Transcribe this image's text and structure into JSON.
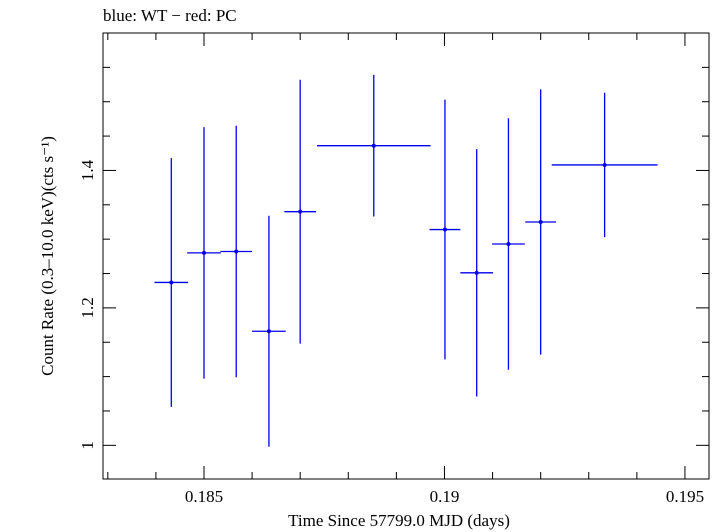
{
  "chart_data": {
    "type": "scatter",
    "title": "blue: WT − red: PC",
    "xlabel": "Time Since 57799.0 MJD (days)",
    "ylabel": "Count Rate (0.3–10.0 keV)(cts s⁻¹)",
    "xlim": [
      0.1829,
      0.1955
    ],
    "ylim": [
      0.951,
      1.6
    ],
    "x_ticks": [
      {
        "value": 0.185,
        "label": "0.185"
      },
      {
        "value": 0.19,
        "label": "0.19"
      },
      {
        "value": 0.195,
        "label": "0.195"
      }
    ],
    "y_ticks": [
      {
        "value": 1.0,
        "label": "1"
      },
      {
        "value": 1.2,
        "label": "1.2"
      },
      {
        "value": 1.4,
        "label": "1.4"
      }
    ],
    "grid": false,
    "series": [
      {
        "color": "#0000ee",
        "points": [
          {
            "x": 0.18432,
            "xerr": 0.00035,
            "y": 1.237,
            "yerr": 0.181
          },
          {
            "x": 0.185,
            "xerr": 0.00035,
            "y": 1.28,
            "yerr": 0.183
          },
          {
            "x": 0.18567,
            "xerr": 0.00033,
            "y": 1.282,
            "yerr": 0.183
          },
          {
            "x": 0.18635,
            "xerr": 0.00035,
            "y": 1.166,
            "yerr": 0.168
          },
          {
            "x": 0.187,
            "xerr": 0.00033,
            "y": 1.34,
            "yerr": 0.192
          },
          {
            "x": 0.18853,
            "xerr": 0.00118,
            "y": 1.436,
            "yerr": 0.103
          },
          {
            "x": 0.19001,
            "xerr": 0.00032,
            "y": 1.314,
            "yerr": 0.189
          },
          {
            "x": 0.19067,
            "xerr": 0.00034,
            "y": 1.251,
            "yerr": 0.18
          },
          {
            "x": 0.19133,
            "xerr": 0.00034,
            "y": 1.293,
            "yerr": 0.183
          },
          {
            "x": 0.192,
            "xerr": 0.00032,
            "y": 1.325,
            "yerr": 0.193
          },
          {
            "x": 0.19333,
            "xerr": 0.0011,
            "y": 1.408,
            "yerr": 0.105
          }
        ]
      }
    ]
  }
}
